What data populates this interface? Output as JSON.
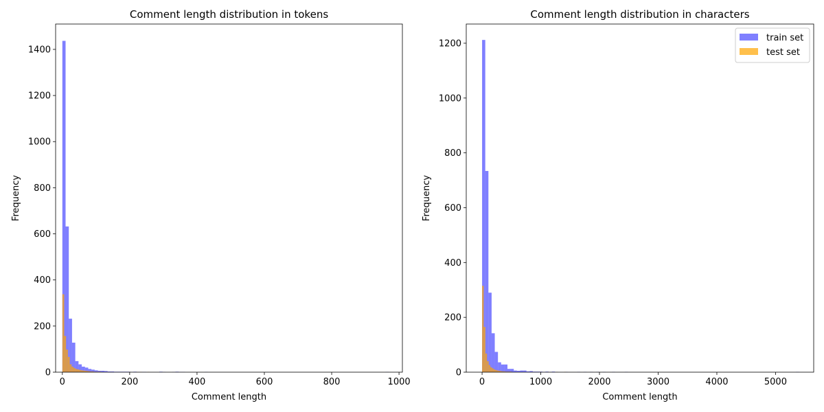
{
  "chart_data": [
    {
      "type": "bar",
      "subtype": "overlaid-histogram",
      "title": "Comment length distribution in tokens",
      "xlabel": "Comment length",
      "ylabel": "Frequency",
      "xlim": [
        -20,
        1010
      ],
      "ylim": [
        0,
        1510
      ],
      "xticks": [
        0,
        200,
        400,
        600,
        800,
        1000
      ],
      "yticks": [
        0,
        200,
        400,
        600,
        800,
        1000,
        1200,
        1400
      ],
      "legend": null,
      "series": [
        {
          "name": "train set",
          "color": "#0000ff",
          "opacity": 0.5,
          "bin_width": 9.6,
          "bins": [
            [
              0,
              1437
            ],
            [
              9.6,
              632
            ],
            [
              19.2,
              232
            ],
            [
              28.8,
              128
            ],
            [
              38.4,
              48
            ],
            [
              48,
              34
            ],
            [
              57.6,
              24
            ],
            [
              67.2,
              20
            ],
            [
              76.8,
              14
            ],
            [
              86.4,
              11
            ],
            [
              96,
              8
            ],
            [
              105.6,
              6
            ],
            [
              115.2,
              6
            ],
            [
              124.8,
              5
            ],
            [
              134.4,
              3
            ],
            [
              144,
              3
            ],
            [
              153.6,
              2
            ],
            [
              163.2,
              2
            ],
            [
              172.8,
              2
            ],
            [
              182.4,
              2
            ],
            [
              192,
              2
            ],
            [
              201.6,
              1
            ],
            [
              211.2,
              2
            ],
            [
              220.8,
              1
            ],
            [
              230.4,
              1
            ],
            [
              240,
              1
            ],
            [
              288,
              2
            ],
            [
              297.6,
              1
            ],
            [
              326.4,
              1
            ],
            [
              336,
              2
            ],
            [
              345.6,
              1
            ],
            [
              355.2,
              1
            ],
            [
              422.4,
              1
            ],
            [
              960,
              1
            ]
          ]
        },
        {
          "name": "test set",
          "color": "#ffa500",
          "opacity": 0.7,
          "bin_width": 5.5,
          "bins": [
            [
              0,
              338
            ],
            [
              5.5,
              157
            ],
            [
              11,
              98
            ],
            [
              16.5,
              66
            ],
            [
              22,
              34
            ],
            [
              27.5,
              24
            ],
            [
              33,
              18
            ],
            [
              38.5,
              14
            ],
            [
              44,
              12
            ],
            [
              49.5,
              10
            ],
            [
              55,
              8
            ],
            [
              60.5,
              7
            ],
            [
              66,
              6
            ],
            [
              71.5,
              5
            ],
            [
              77,
              4
            ],
            [
              82.5,
              3
            ],
            [
              88,
              3
            ],
            [
              93.5,
              2
            ],
            [
              99,
              2
            ],
            [
              104.5,
              2
            ],
            [
              110,
              2
            ],
            [
              115.5,
              1
            ],
            [
              121,
              1
            ],
            [
              126.5,
              1
            ],
            [
              132,
              1
            ],
            [
              143,
              1
            ],
            [
              198,
              1
            ],
            [
              220,
              1
            ],
            [
              231,
              1
            ],
            [
              253,
              1
            ]
          ]
        }
      ]
    },
    {
      "type": "bar",
      "subtype": "overlaid-histogram",
      "title": "Comment length distribution in characters",
      "xlabel": "Comment length",
      "ylabel": "Frequency",
      "xlim": [
        -270,
        5650
      ],
      "ylim": [
        0,
        1270
      ],
      "xticks": [
        0,
        1000,
        2000,
        3000,
        4000,
        5000
      ],
      "yticks": [
        0,
        200,
        400,
        600,
        800,
        1000,
        1200
      ],
      "legend": "top-right",
      "series": [
        {
          "name": "train set",
          "color": "#0000ff",
          "opacity": 0.5,
          "bin_width": 54,
          "bins": [
            [
              0,
              1212
            ],
            [
              54,
              734
            ],
            [
              108,
              290
            ],
            [
              162,
              142
            ],
            [
              216,
              74
            ],
            [
              270,
              36
            ],
            [
              324,
              28
            ],
            [
              378,
              28
            ],
            [
              432,
              12
            ],
            [
              486,
              12
            ],
            [
              540,
              6
            ],
            [
              594,
              5
            ],
            [
              648,
              6
            ],
            [
              702,
              6
            ],
            [
              756,
              3
            ],
            [
              810,
              4
            ],
            [
              864,
              2
            ],
            [
              918,
              2
            ],
            [
              972,
              2
            ],
            [
              1026,
              1
            ],
            [
              1080,
              2
            ],
            [
              1134,
              1
            ],
            [
              1188,
              2
            ],
            [
              1242,
              1
            ],
            [
              1404,
              1
            ],
            [
              1620,
              1
            ],
            [
              1728,
              1
            ],
            [
              1836,
              1
            ],
            [
              1944,
              1
            ],
            [
              2052,
              1
            ],
            [
              2214,
              1
            ],
            [
              2430,
              1
            ],
            [
              5346,
              1
            ]
          ]
        },
        {
          "name": "test set",
          "color": "#ffa500",
          "opacity": 0.7,
          "bin_width": 28,
          "bins": [
            [
              0,
              315
            ],
            [
              28,
              165
            ],
            [
              56,
              68
            ],
            [
              84,
              40
            ],
            [
              112,
              26
            ],
            [
              140,
              18
            ],
            [
              168,
              14
            ],
            [
              196,
              10
            ],
            [
              224,
              8
            ],
            [
              252,
              6
            ],
            [
              280,
              5
            ],
            [
              308,
              4
            ],
            [
              336,
              3
            ],
            [
              364,
              3
            ],
            [
              392,
              2
            ],
            [
              420,
              2
            ],
            [
              448,
              2
            ],
            [
              476,
              2
            ],
            [
              504,
              1
            ],
            [
              560,
              1
            ],
            [
              616,
              1
            ],
            [
              700,
              1
            ],
            [
              840,
              1
            ],
            [
              980,
              1
            ],
            [
              1120,
              1
            ],
            [
              1260,
              1
            ],
            [
              1400,
              1
            ]
          ]
        }
      ]
    }
  ]
}
